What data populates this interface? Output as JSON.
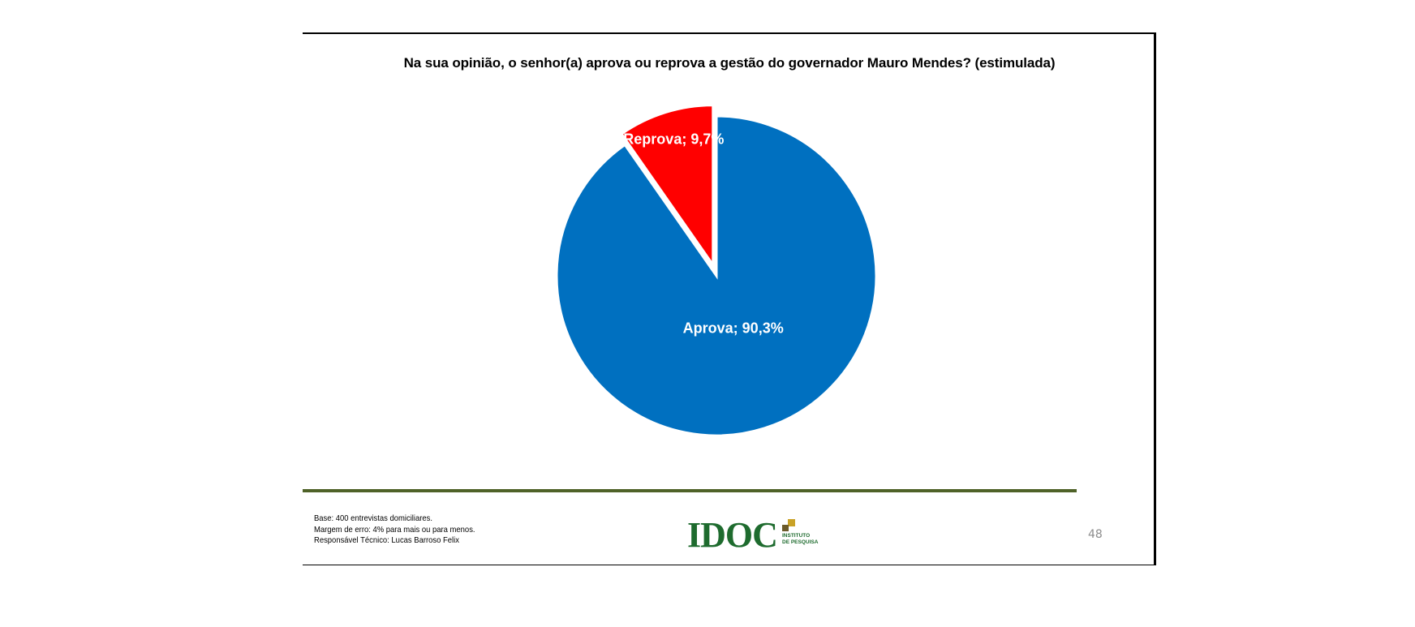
{
  "slide": {
    "title": "Na sua opinião, o senhor(a) aprova ou reprova a gestão do governador Mauro Mendes?  (estimulada)",
    "footnotes": [
      "Base: 400 entrevistas domiciliares.",
      "Margem de erro: 4% para mais ou para menos.",
      "Responsável Técnico: Lucas Barroso Felix"
    ],
    "logo": {
      "name": "IDOC",
      "subtitle_line1": "INSTITUTO",
      "subtitle_line2": "DE PESQUISA"
    },
    "page_number": "48"
  },
  "chart_data": {
    "type": "pie",
    "title": "Na sua opinião, o senhor(a) aprova ou reprova a gestão do governador Mauro Mendes?  (estimulada)",
    "slices": [
      {
        "label": "Aprova",
        "value": 90.3,
        "data_label": "Aprova; 90,3%",
        "color": "#0070C0",
        "exploded": false
      },
      {
        "label": "Reprova",
        "value": 9.7,
        "data_label": "Reprova; 9,7%",
        "color": "#FF0000",
        "exploded": true
      }
    ],
    "start_angle_deg": 0,
    "direction": "clockwise",
    "legend": "none"
  }
}
